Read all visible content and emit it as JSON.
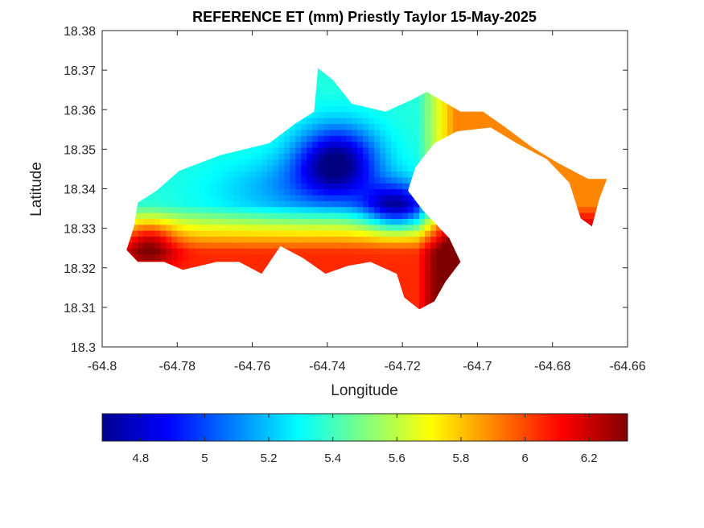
{
  "chart_data": {
    "type": "heatmap",
    "title": "REFERENCE ET (mm) Priestly Taylor 15-May-2025",
    "xlabel": "Longitude",
    "ylabel": "Latitude",
    "xlim": [
      -64.8,
      -64.66
    ],
    "ylim": [
      18.3,
      18.38
    ],
    "xticks": [
      -64.8,
      -64.78,
      -64.76,
      -64.74,
      -64.72,
      -64.7,
      -64.68,
      -64.66
    ],
    "xtick_labels": [
      "-64.8",
      "-64.78",
      "-64.76",
      "-64.74",
      "-64.72",
      "-64.7",
      "-64.68",
      "-64.66"
    ],
    "yticks": [
      18.3,
      18.31,
      18.32,
      18.33,
      18.34,
      18.35,
      18.36,
      18.37,
      18.38
    ],
    "ytick_labels": [
      "18.3",
      "18.31",
      "18.32",
      "18.33",
      "18.34",
      "18.35",
      "18.36",
      "18.37",
      "18.38"
    ],
    "colormap": "jet",
    "colorbar": {
      "orientation": "horizontal",
      "placement": "below",
      "range": [
        4.68,
        6.32
      ],
      "ticks": [
        4.8,
        5,
        5.2,
        5.4,
        5.6,
        5.8,
        6,
        6.2
      ],
      "tick_labels": [
        "4.8",
        "5",
        "5.2",
        "5.4",
        "5.6",
        "5.8",
        "6",
        "6.2"
      ]
    },
    "grid": false,
    "outline": [
      [
        -64.7905,
        18.3365
      ],
      [
        -64.7855,
        18.3395
      ],
      [
        -64.7795,
        18.3445
      ],
      [
        -64.7685,
        18.3485
      ],
      [
        -64.7555,
        18.3515
      ],
      [
        -64.7485,
        18.3565
      ],
      [
        -64.7435,
        18.3595
      ],
      [
        -64.7425,
        18.3705
      ],
      [
        -64.7385,
        18.3675
      ],
      [
        -64.7335,
        18.3615
      ],
      [
        -64.7245,
        18.3595
      ],
      [
        -64.7175,
        18.3625
      ],
      [
        -64.7135,
        18.3645
      ],
      [
        -64.7045,
        18.3595
      ],
      [
        -64.6985,
        18.3595
      ],
      [
        -64.6925,
        18.3555
      ],
      [
        -64.6855,
        18.3505
      ],
      [
        -64.6785,
        18.3465
      ],
      [
        -64.6705,
        18.3425
      ],
      [
        -64.6655,
        18.3425
      ],
      [
        -64.6675,
        18.3375
      ],
      [
        -64.6695,
        18.3305
      ],
      [
        -64.6725,
        18.3325
      ],
      [
        -64.6755,
        18.3415
      ],
      [
        -64.6815,
        18.3475
      ],
      [
        -64.6895,
        18.3515
      ],
      [
        -64.6965,
        18.3555
      ],
      [
        -64.7055,
        18.3545
      ],
      [
        -64.7115,
        18.3515
      ],
      [
        -64.7165,
        18.3455
      ],
      [
        -64.7185,
        18.3395
      ],
      [
        -64.7145,
        18.3345
      ],
      [
        -64.7075,
        18.3275
      ],
      [
        -64.7045,
        18.3215
      ],
      [
        -64.7085,
        18.3165
      ],
      [
        -64.7115,
        18.3115
      ],
      [
        -64.7155,
        18.3095
      ],
      [
        -64.7195,
        18.3125
      ],
      [
        -64.7215,
        18.3185
      ],
      [
        -64.7285,
        18.3215
      ],
      [
        -64.7345,
        18.3205
      ],
      [
        -64.7405,
        18.3185
      ],
      [
        -64.7465,
        18.3225
      ],
      [
        -64.7525,
        18.3255
      ],
      [
        -64.7575,
        18.3185
      ],
      [
        -64.7635,
        18.3215
      ],
      [
        -64.7695,
        18.3215
      ],
      [
        -64.7785,
        18.3195
      ],
      [
        -64.7835,
        18.3215
      ],
      [
        -64.7905,
        18.3215
      ],
      [
        -64.7935,
        18.3245
      ],
      [
        -64.7915,
        18.3305
      ]
    ],
    "hotspots": [
      {
        "label": "min",
        "lon": -64.7375,
        "lat": 18.347,
        "value": 4.75
      },
      {
        "label": "min",
        "lon": -64.7215,
        "lat": 18.3355,
        "value": 4.78
      },
      {
        "label": "max",
        "lon": -64.7875,
        "lat": 18.3265,
        "value": 6.3
      }
    ]
  }
}
